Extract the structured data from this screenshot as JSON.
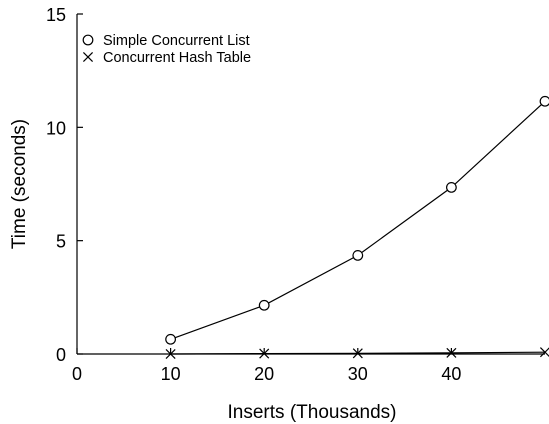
{
  "chart_data": {
    "type": "line",
    "xlabel": "Inserts (Thousands)",
    "ylabel": "Time (seconds)",
    "xlim": [
      0,
      50
    ],
    "ylim": [
      0,
      15
    ],
    "xticks": [
      0,
      10,
      20,
      30,
      40
    ],
    "yticks": [
      0,
      5,
      10,
      15
    ],
    "grid": false,
    "legend_position": "top-left",
    "series": [
      {
        "name": "Simple Concurrent List",
        "marker": "circle",
        "x": [
          10,
          20,
          30,
          40,
          50
        ],
        "y": [
          0.65,
          2.15,
          4.35,
          7.35,
          11.15
        ]
      },
      {
        "name": "Concurrent Hash Table",
        "marker": "cross",
        "x": [
          10,
          20,
          30,
          40,
          50
        ],
        "y": [
          0.0,
          0.02,
          0.03,
          0.05,
          0.08
        ]
      }
    ]
  }
}
